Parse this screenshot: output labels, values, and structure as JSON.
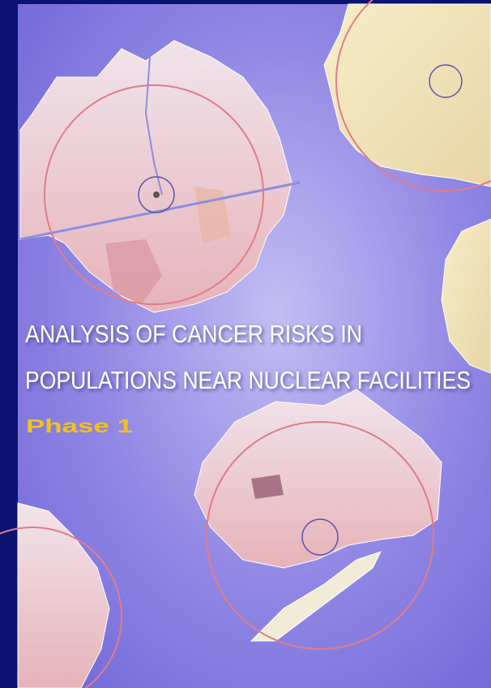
{
  "cover": {
    "title_lines": [
      "ANALYSIS OF CANCER RISKS IN",
      "POPULATIONS NEAR NUCLEAR FACILITIES"
    ],
    "subtitle": "Phase 1"
  }
}
